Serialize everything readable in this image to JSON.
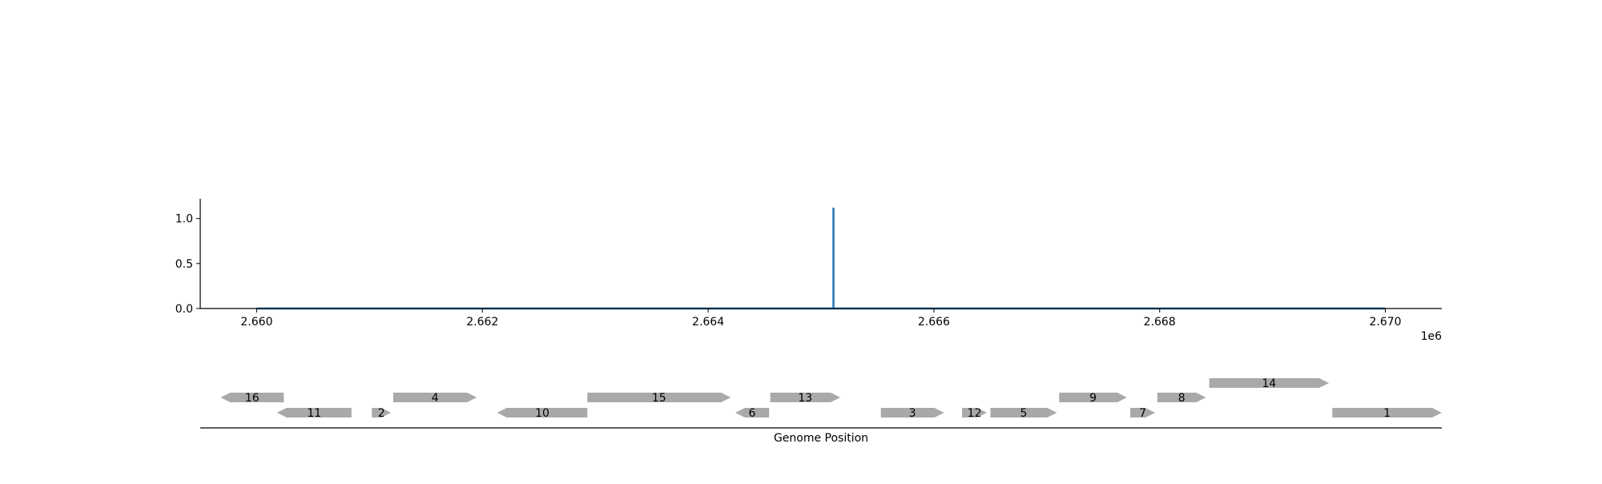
{
  "chart_data": [
    {
      "type": "line",
      "title": "",
      "xlabel": "",
      "ylabel": "",
      "x_offset_label": "1e6",
      "xlim": [
        2.6595,
        2.6705
      ],
      "ylim": [
        0.0,
        1.22
      ],
      "x_ticks": [
        2.66,
        2.662,
        2.664,
        2.666,
        2.668,
        2.67
      ],
      "x_tick_labels": [
        "2.660",
        "2.662",
        "2.664",
        "2.666",
        "2.668",
        "2.670"
      ],
      "y_ticks": [
        0.0,
        0.5,
        1.0
      ],
      "y_tick_labels": [
        "0.0",
        "0.5",
        "1.0"
      ],
      "grid": false,
      "series": [
        {
          "color": "#1f77b4",
          "x": [
            2.66,
            2.66511,
            2.66511,
            2.66511,
            2.67
          ],
          "y": [
            0,
            0,
            1.12,
            0,
            0
          ]
        }
      ]
    },
    {
      "type": "gene-track",
      "xlabel": "Genome Position",
      "xlim": [
        2.6595,
        2.6705
      ],
      "color": "#a9a9a9",
      "genes": [
        {
          "label": "16",
          "start": 2.65968,
          "end": 2.66024,
          "strand": "-",
          "row": 1
        },
        {
          "label": "11",
          "start": 2.66018,
          "end": 2.66084,
          "strand": "-",
          "row": 0
        },
        {
          "label": "2",
          "start": 2.66102,
          "end": 2.66119,
          "strand": "+",
          "row": 0
        },
        {
          "label": "4",
          "start": 2.66121,
          "end": 2.66195,
          "strand": "+",
          "row": 1
        },
        {
          "label": "10",
          "start": 2.66213,
          "end": 2.66293,
          "strand": "-",
          "row": 0
        },
        {
          "label": "15",
          "start": 2.66293,
          "end": 2.6642,
          "strand": "+",
          "row": 1
        },
        {
          "label": "6",
          "start": 2.66424,
          "end": 2.66454,
          "strand": "-",
          "row": 0
        },
        {
          "label": "13",
          "start": 2.66455,
          "end": 2.66517,
          "strand": "+",
          "row": 1
        },
        {
          "label": "3",
          "start": 2.66553,
          "end": 2.66609,
          "strand": "+",
          "row": 0
        },
        {
          "label": "12",
          "start": 2.66625,
          "end": 2.66647,
          "strand": "+",
          "row": 0
        },
        {
          "label": "5",
          "start": 2.6665,
          "end": 2.66709,
          "strand": "+",
          "row": 0
        },
        {
          "label": "9",
          "start": 2.66711,
          "end": 2.66771,
          "strand": "+",
          "row": 1
        },
        {
          "label": "7",
          "start": 2.66774,
          "end": 2.66796,
          "strand": "+",
          "row": 0
        },
        {
          "label": "8",
          "start": 2.66798,
          "end": 2.66841,
          "strand": "+",
          "row": 1
        },
        {
          "label": "14",
          "start": 2.66844,
          "end": 2.6695,
          "strand": "+",
          "row": 2
        },
        {
          "label": "1",
          "start": 2.66953,
          "end": 2.6705,
          "strand": "+",
          "row": 0
        }
      ]
    }
  ]
}
